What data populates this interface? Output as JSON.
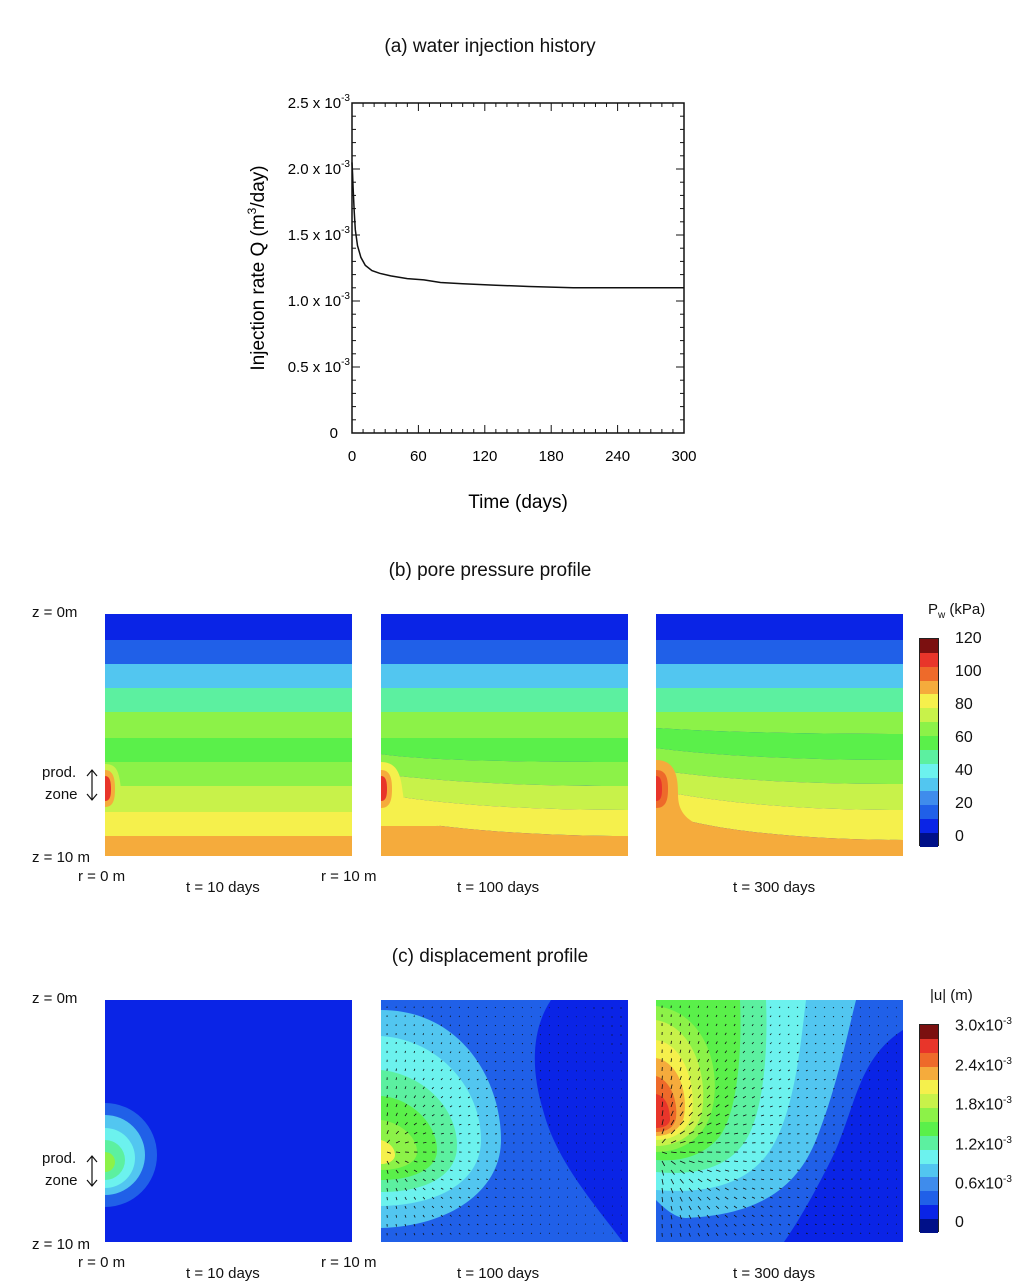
{
  "chart_data": [
    {
      "type": "line",
      "title": "(a) water injection history",
      "xlabel": "Time (days)",
      "ylabel": "Injection rate Q (m",
      "ylabel_sup": "3",
      "ylabel_tail": "/day)",
      "xlim": [
        0,
        300
      ],
      "ylim": [
        0,
        0.0025
      ],
      "x_ticks": [
        0,
        60,
        120,
        180,
        240,
        300
      ],
      "x_tick_labels": [
        "0",
        "60",
        "120",
        "180",
        "240",
        "300"
      ],
      "y_ticks": [
        0,
        0.0005,
        0.001,
        0.0015,
        0.002,
        0.0025
      ],
      "y_tick_labels": [
        {
          "base": "0",
          "exp": ""
        },
        {
          "base": "0.5 x 10",
          "exp": "-3"
        },
        {
          "base": "1.0 x 10",
          "exp": "-3"
        },
        {
          "base": "1.5 x 10",
          "exp": "-3"
        },
        {
          "base": "2.0 x 10",
          "exp": "-3"
        },
        {
          "base": "2.5 x 10",
          "exp": "-3"
        }
      ],
      "series": [
        {
          "name": "Q",
          "x": [
            0,
            0.5,
            1,
            2,
            3,
            5,
            8,
            12,
            18,
            25,
            35,
            50,
            65,
            80,
            100,
            130,
            160,
            200,
            240,
            270,
            300
          ],
          "y": [
            0.00205,
            0.00196,
            0.00186,
            0.00168,
            0.00154,
            0.00142,
            0.00133,
            0.00127,
            0.00123,
            0.00121,
            0.00119,
            0.00117,
            0.00116,
            0.00114,
            0.00113,
            0.00112,
            0.00111,
            0.0011,
            0.0011,
            0.0011,
            0.0011
          ]
        }
      ]
    },
    {
      "type": "heatmap",
      "title": "(b) pore pressure profile",
      "colorbar_title": "P",
      "colorbar_title_sub": "w",
      "colorbar_title_tail": " (kPa)",
      "colorbar_ticks": [
        "120",
        "100",
        "80",
        "60",
        "40",
        "20",
        "0"
      ],
      "colorbar_colors": [
        "#7b1010",
        "#e8352a",
        "#ee6a2a",
        "#f5ab3c",
        "#f5f04c",
        "#c8f24a",
        "#8cf248",
        "#5af04a",
        "#5cf0a0",
        "#6cf2ee",
        "#52c6f0",
        "#3f8cec",
        "#2060e8",
        "#0a24e6",
        "#001088"
      ],
      "colorbar_range": [
        0,
        120
      ],
      "panels": [
        {
          "time_label": "t = 10 days"
        },
        {
          "time_label": "t = 100 days"
        },
        {
          "time_label": "t = 300 days"
        }
      ],
      "axis_labels": {
        "z_top": "z = 0m",
        "z_bottom": "z = 10 m",
        "r_left": "r = 0 m",
        "r_right": "r = 10 m",
        "zone_line1": "prod.",
        "zone_line2": "zone"
      }
    },
    {
      "type": "heatmap",
      "title": "(c) displacement profile",
      "colorbar_title": "|u| (m)",
      "colorbar_ticks": [
        {
          "base": "3.0x10",
          "exp": "-3"
        },
        {
          "base": "2.4x10",
          "exp": "-3"
        },
        {
          "base": "1.8x10",
          "exp": "-3"
        },
        {
          "base": "1.2x10",
          "exp": "-3"
        },
        {
          "base": "0.6x10",
          "exp": "-3"
        },
        {
          "base": "0",
          "exp": ""
        }
      ],
      "colorbar_colors": [
        "#7b1010",
        "#e8352a",
        "#ee6a2a",
        "#f5ab3c",
        "#f5f04c",
        "#c8f24a",
        "#8cf248",
        "#5af04a",
        "#5cf0a0",
        "#6cf2ee",
        "#52c6f0",
        "#3f8cec",
        "#2060e8",
        "#0a24e6",
        "#001088"
      ],
      "colorbar_range": [
        0,
        0.003
      ],
      "panels": [
        {
          "time_label": "t = 10 days"
        },
        {
          "time_label": "t = 100 days"
        },
        {
          "time_label": "t = 300 days"
        }
      ],
      "axis_labels": {
        "z_top": "z = 0m",
        "z_bottom": "z = 10 m",
        "r_left": "r = 0 m",
        "r_right": "r = 10 m",
        "zone_line1": "prod.",
        "zone_line2": "zone"
      }
    }
  ]
}
